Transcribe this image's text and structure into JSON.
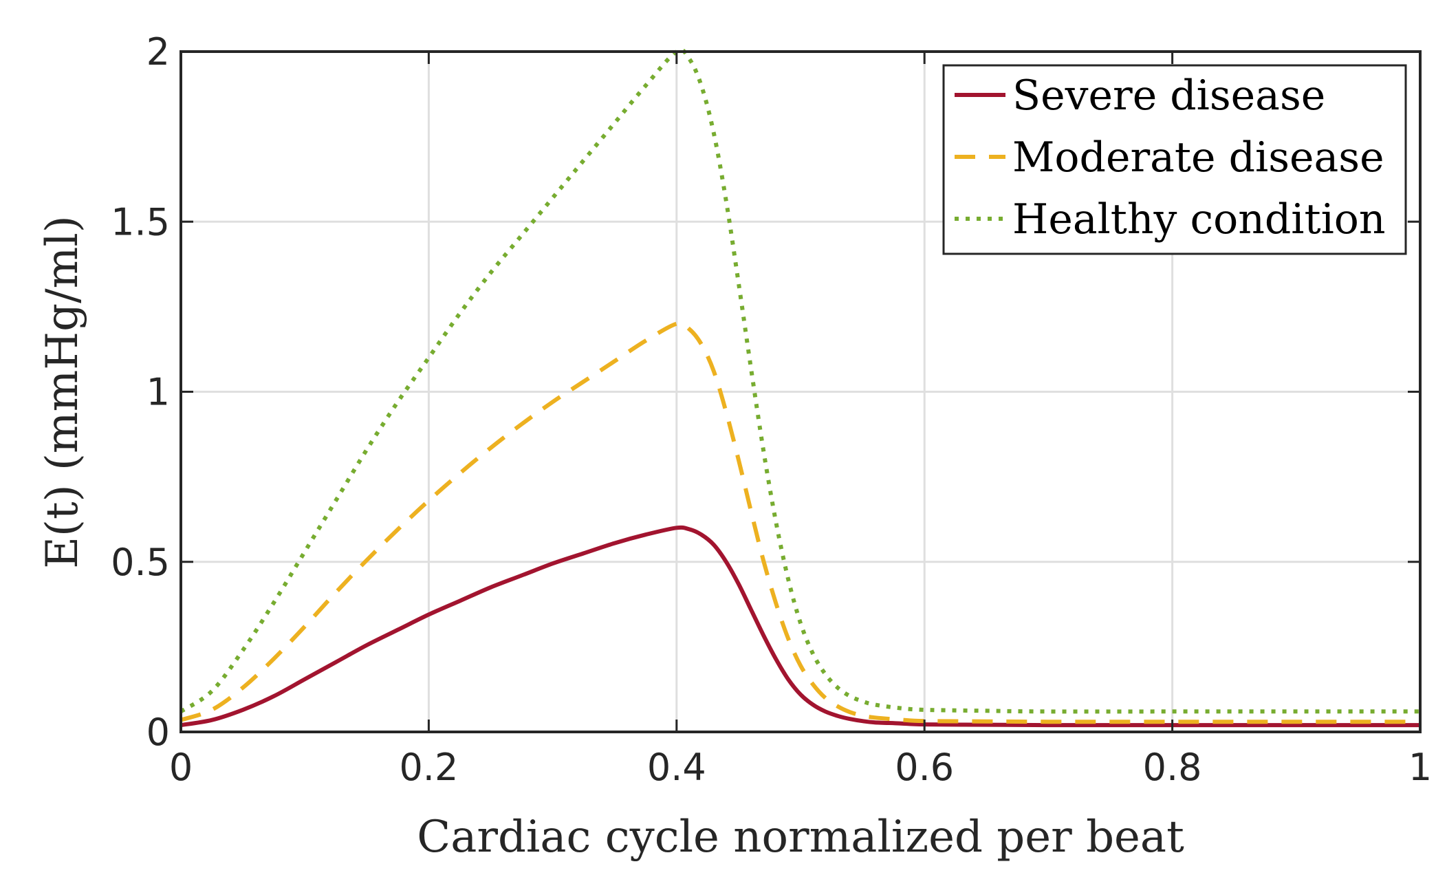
{
  "chart_data": {
    "type": "line",
    "title": "",
    "xlabel": "Cardiac cycle normalized per beat",
    "ylabel": "E(t) (mmHg/ml)",
    "xlim": [
      0,
      1
    ],
    "ylim": [
      0,
      2
    ],
    "grid": true,
    "legend_position": "top-right",
    "x_ticks": [
      {
        "value": 0,
        "label": "0"
      },
      {
        "value": 0.2,
        "label": "0.2"
      },
      {
        "value": 0.4,
        "label": "0.4"
      },
      {
        "value": 0.6,
        "label": "0.6"
      },
      {
        "value": 0.8,
        "label": "0.8"
      },
      {
        "value": 1,
        "label": "1"
      }
    ],
    "y_ticks": [
      {
        "value": 0,
        "label": "0"
      },
      {
        "value": 0.5,
        "label": "0.5"
      },
      {
        "value": 1,
        "label": "1"
      },
      {
        "value": 1.5,
        "label": "1.5"
      },
      {
        "value": 2,
        "label": "2"
      }
    ],
    "x": [
      0,
      0.025,
      0.05,
      0.075,
      0.1,
      0.125,
      0.15,
      0.175,
      0.2,
      0.225,
      0.25,
      0.275,
      0.3,
      0.325,
      0.35,
      0.375,
      0.4,
      0.41,
      0.42,
      0.43,
      0.44,
      0.45,
      0.46,
      0.47,
      0.48,
      0.49,
      0.5,
      0.51,
      0.52,
      0.53,
      0.54,
      0.55,
      0.56,
      0.58,
      0.6,
      0.65,
      0.7,
      0.8,
      0.9,
      1
    ],
    "series": [
      {
        "name": "Severe disease",
        "color": "#A2142F",
        "dash": "solid",
        "values": [
          0.02,
          0.035,
          0.065,
          0.105,
          0.155,
          0.205,
          0.255,
          0.3,
          0.345,
          0.385,
          0.425,
          0.46,
          0.495,
          0.525,
          0.555,
          0.58,
          0.6,
          0.596,
          0.58,
          0.55,
          0.5,
          0.435,
          0.36,
          0.285,
          0.215,
          0.155,
          0.11,
          0.08,
          0.06,
          0.047,
          0.038,
          0.032,
          0.028,
          0.025,
          0.022,
          0.021,
          0.02,
          0.02,
          0.02,
          0.02
        ]
      },
      {
        "name": "Moderate disease",
        "color": "#EDB120",
        "dash": "dashed",
        "values": [
          0.035,
          0.065,
          0.13,
          0.215,
          0.31,
          0.41,
          0.505,
          0.595,
          0.68,
          0.76,
          0.835,
          0.905,
          0.97,
          1.03,
          1.09,
          1.15,
          1.2,
          1.185,
          1.14,
          1.06,
          0.94,
          0.8,
          0.65,
          0.505,
          0.38,
          0.275,
          0.195,
          0.14,
          0.1,
          0.075,
          0.058,
          0.048,
          0.042,
          0.036,
          0.032,
          0.031,
          0.03,
          0.03,
          0.03,
          0.03
        ]
      },
      {
        "name": "Healthy condition",
        "color": "#77AC30",
        "dash": "dotted",
        "values": [
          0.06,
          0.12,
          0.24,
          0.38,
          0.53,
          0.68,
          0.83,
          0.97,
          1.1,
          1.23,
          1.35,
          1.46,
          1.57,
          1.68,
          1.79,
          1.9,
          2.0,
          1.98,
          1.9,
          1.76,
          1.56,
          1.32,
          1.07,
          0.83,
          0.62,
          0.45,
          0.32,
          0.23,
          0.17,
          0.13,
          0.105,
          0.09,
          0.08,
          0.07,
          0.065,
          0.062,
          0.06,
          0.06,
          0.06,
          0.06
        ]
      }
    ]
  }
}
